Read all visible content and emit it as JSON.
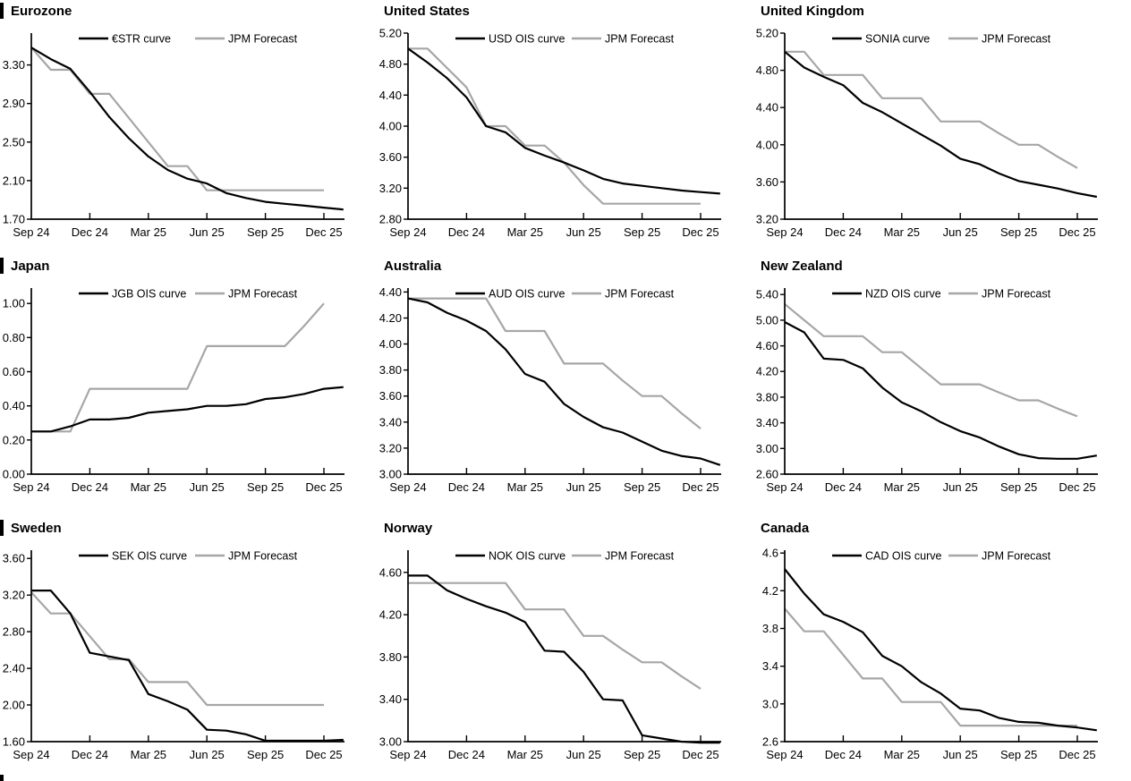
{
  "colors": {
    "curve": "#000000",
    "forecast": "#a6a6a6",
    "axis": "#000000",
    "title_bar": "#000000"
  },
  "x_axis_labels": [
    "Sep 24",
    "Dec 24",
    "Mar 25",
    "Jun 25",
    "Sep 25",
    "Dec 25"
  ],
  "chart_data": [
    {
      "id": "eurozone",
      "type": "line",
      "title": "Eurozone",
      "curve_label": "€STR curve",
      "forecast_label": "JPM Forecast",
      "has_left_bar": true,
      "y_ticks": [
        "3.30",
        "2.90",
        "2.50",
        "2.10",
        "1.70"
      ],
      "ylim": [
        1.7,
        3.63
      ],
      "x_ticks": [
        "Sep 24",
        "Dec 24",
        "Mar 25",
        "Jun 25",
        "Sep 25",
        "Dec 25"
      ],
      "curve": [
        3.48,
        3.36,
        3.26,
        3.02,
        2.76,
        2.54,
        2.35,
        2.21,
        2.12,
        2.07,
        1.97,
        1.92,
        1.88,
        1.86,
        1.84,
        1.82,
        1.8
      ],
      "forecast": [
        3.48,
        3.25,
        3.25,
        3.0,
        3.0,
        2.75,
        2.5,
        2.25,
        2.25,
        2.0,
        2.0,
        2.0,
        2.0,
        2.0,
        2.0,
        2.0
      ]
    },
    {
      "id": "united-states",
      "type": "line",
      "title": "United States",
      "curve_label": "USD OIS curve",
      "forecast_label": "JPM Forecast",
      "has_left_bar": false,
      "y_ticks": [
        "5.20",
        "4.80",
        "4.40",
        "4.00",
        "3.60",
        "3.20",
        "2.80"
      ],
      "ylim": [
        2.8,
        5.2
      ],
      "x_ticks": [
        "Sep 24",
        "Dec 24",
        "Mar 25",
        "Jun 25",
        "Sep 25",
        "Dec 25"
      ],
      "curve": [
        5.0,
        4.82,
        4.62,
        4.37,
        4.0,
        3.92,
        3.72,
        3.62,
        3.53,
        3.43,
        3.32,
        3.26,
        3.23,
        3.2,
        3.17,
        3.15,
        3.13
      ],
      "forecast": [
        5.0,
        5.0,
        4.75,
        4.5,
        4.0,
        4.0,
        3.75,
        3.75,
        3.53,
        3.24,
        3.0,
        3.0,
        3.0,
        3.0,
        3.0,
        3.0
      ]
    },
    {
      "id": "united-kingdom",
      "type": "line",
      "title": "United Kingdom",
      "curve_label": "SONIA curve",
      "forecast_label": "JPM Forecast",
      "has_left_bar": false,
      "y_ticks": [
        "5.20",
        "4.80",
        "4.40",
        "4.00",
        "3.60",
        "3.20"
      ],
      "ylim": [
        3.2,
        5.2
      ],
      "x_ticks": [
        "Sep 24",
        "Dec 24",
        "Mar 25",
        "Jun 25",
        "Sep 25",
        "Dec 25"
      ],
      "curve": [
        5.0,
        4.83,
        4.73,
        4.64,
        4.45,
        4.35,
        4.23,
        4.11,
        3.99,
        3.85,
        3.79,
        3.69,
        3.61,
        3.57,
        3.53,
        3.48,
        3.44
      ],
      "forecast": [
        5.0,
        5.0,
        4.75,
        4.75,
        4.75,
        4.5,
        4.5,
        4.5,
        4.25,
        4.25,
        4.25,
        4.12,
        4.0,
        4.0,
        3.87,
        3.75
      ]
    },
    {
      "id": "japan",
      "type": "line",
      "title": "Japan",
      "curve_label": "JGB OIS curve",
      "forecast_label": "JPM Forecast",
      "has_left_bar": true,
      "y_ticks": [
        "1.00",
        "0.80",
        "0.60",
        "0.40",
        "0.20",
        "0.00"
      ],
      "ylim": [
        0.0,
        1.09
      ],
      "x_ticks": [
        "Sep 24",
        "Dec 24",
        "Mar 25",
        "Jun 25",
        "Sep 25",
        "Dec 25"
      ],
      "curve": [
        0.25,
        0.25,
        0.28,
        0.32,
        0.32,
        0.33,
        0.36,
        0.37,
        0.38,
        0.4,
        0.4,
        0.41,
        0.44,
        0.45,
        0.47,
        0.5,
        0.51
      ],
      "forecast": [
        0.25,
        0.25,
        0.25,
        0.5,
        0.5,
        0.5,
        0.5,
        0.5,
        0.5,
        0.75,
        0.75,
        0.75,
        0.75,
        0.75,
        0.87,
        1.0
      ]
    },
    {
      "id": "australia",
      "type": "line",
      "title": "Australia",
      "curve_label": "AUD OIS curve",
      "forecast_label": "JPM Forecast",
      "has_left_bar": false,
      "y_ticks": [
        "4.40",
        "4.20",
        "4.00",
        "3.80",
        "3.60",
        "3.40",
        "3.20",
        "3.00"
      ],
      "ylim": [
        3.0,
        4.43
      ],
      "x_ticks": [
        "Sep 24",
        "Dec 24",
        "Mar 25",
        "Jun 25",
        "Sep 25",
        "Dec 25"
      ],
      "curve": [
        4.35,
        4.32,
        4.24,
        4.18,
        4.1,
        3.96,
        3.77,
        3.71,
        3.54,
        3.44,
        3.36,
        3.32,
        3.25,
        3.18,
        3.14,
        3.12,
        3.07
      ],
      "forecast": [
        4.35,
        4.35,
        4.35,
        4.35,
        4.35,
        4.1,
        4.1,
        4.1,
        3.85,
        3.85,
        3.85,
        3.72,
        3.6,
        3.6,
        3.47,
        3.35
      ]
    },
    {
      "id": "new-zealand",
      "type": "line",
      "title": "New Zealand",
      "curve_label": "NZD OIS curve",
      "forecast_label": "JPM Forecast",
      "has_left_bar": false,
      "y_ticks": [
        "5.40",
        "5.00",
        "4.60",
        "4.20",
        "3.80",
        "3.40",
        "3.00",
        "2.60"
      ],
      "ylim": [
        2.6,
        5.5
      ],
      "x_ticks": [
        "Sep 24",
        "Dec 24",
        "Mar 25",
        "Jun 25",
        "Sep 25",
        "Dec 25"
      ],
      "curve": [
        4.97,
        4.81,
        4.4,
        4.38,
        4.25,
        3.95,
        3.72,
        3.58,
        3.41,
        3.27,
        3.17,
        3.03,
        2.91,
        2.85,
        2.84,
        2.84,
        2.89
      ],
      "forecast": [
        5.25,
        5.0,
        4.75,
        4.75,
        4.75,
        4.5,
        4.5,
        4.25,
        4.0,
        4.0,
        4.0,
        3.87,
        3.75,
        3.75,
        3.62,
        3.5
      ]
    },
    {
      "id": "sweden",
      "type": "line",
      "title": "Sweden",
      "curve_label": "SEK OIS curve",
      "forecast_label": "JPM Forecast",
      "has_left_bar": true,
      "y_ticks": [
        "3.60",
        "3.20",
        "2.80",
        "2.40",
        "2.00",
        "1.60"
      ],
      "ylim": [
        1.6,
        3.69
      ],
      "x_ticks": [
        "Sep 24",
        "Dec 24",
        "Mar 25",
        "Jun 25",
        "Sep 25",
        "Dec 25"
      ],
      "curve": [
        3.25,
        3.25,
        3.0,
        2.57,
        2.53,
        2.49,
        2.12,
        2.04,
        1.95,
        1.73,
        1.72,
        1.68,
        1.61,
        1.61,
        1.61,
        1.61,
        1.62
      ],
      "forecast": [
        3.23,
        3.0,
        3.0,
        2.75,
        2.5,
        2.5,
        2.25,
        2.25,
        2.25,
        2.0,
        2.0,
        2.0,
        2.0,
        2.0,
        2.0,
        2.0
      ]
    },
    {
      "id": "norway",
      "type": "line",
      "title": "Norway",
      "curve_label": "NOK OIS curve",
      "forecast_label": "JPM Forecast",
      "has_left_bar": false,
      "y_ticks": [
        "4.60",
        "4.20",
        "3.80",
        "3.40",
        "3.00"
      ],
      "ylim": [
        3.0,
        4.81
      ],
      "x_ticks": [
        "Sep 24",
        "Dec 24",
        "Mar 25",
        "Jun 25",
        "Sep 25",
        "Dec 25"
      ],
      "curve": [
        4.57,
        4.57,
        4.43,
        4.35,
        4.28,
        4.22,
        4.13,
        3.86,
        3.85,
        3.66,
        3.4,
        3.39,
        3.06,
        3.03,
        3.0,
        2.99,
        2.99
      ],
      "forecast": [
        4.5,
        4.5,
        4.5,
        4.5,
        4.5,
        4.5,
        4.25,
        4.25,
        4.25,
        4.0,
        4.0,
        3.87,
        3.75,
        3.75,
        3.62,
        3.5
      ]
    },
    {
      "id": "canada",
      "type": "line",
      "title": "Canada",
      "curve_label": "CAD OIS curve",
      "forecast_label": "JPM Forecast",
      "has_left_bar": false,
      "y_ticks": [
        "4.6",
        "4.2",
        "3.8",
        "3.4",
        "3.0",
        "2.6"
      ],
      "ylim": [
        2.6,
        4.63
      ],
      "x_ticks": [
        "Sep 24",
        "Dec 24",
        "Mar 25",
        "Jun 25",
        "Sep 25",
        "Dec 25"
      ],
      "curve": [
        4.43,
        4.17,
        3.95,
        3.87,
        3.76,
        3.51,
        3.4,
        3.23,
        3.11,
        2.95,
        2.93,
        2.85,
        2.81,
        2.8,
        2.77,
        2.75,
        2.72
      ],
      "forecast": [
        4.01,
        3.77,
        3.77,
        3.52,
        3.27,
        3.27,
        3.02,
        3.02,
        3.02,
        2.77,
        2.77,
        2.77,
        2.77,
        2.77,
        2.77,
        2.77
      ]
    }
  ]
}
